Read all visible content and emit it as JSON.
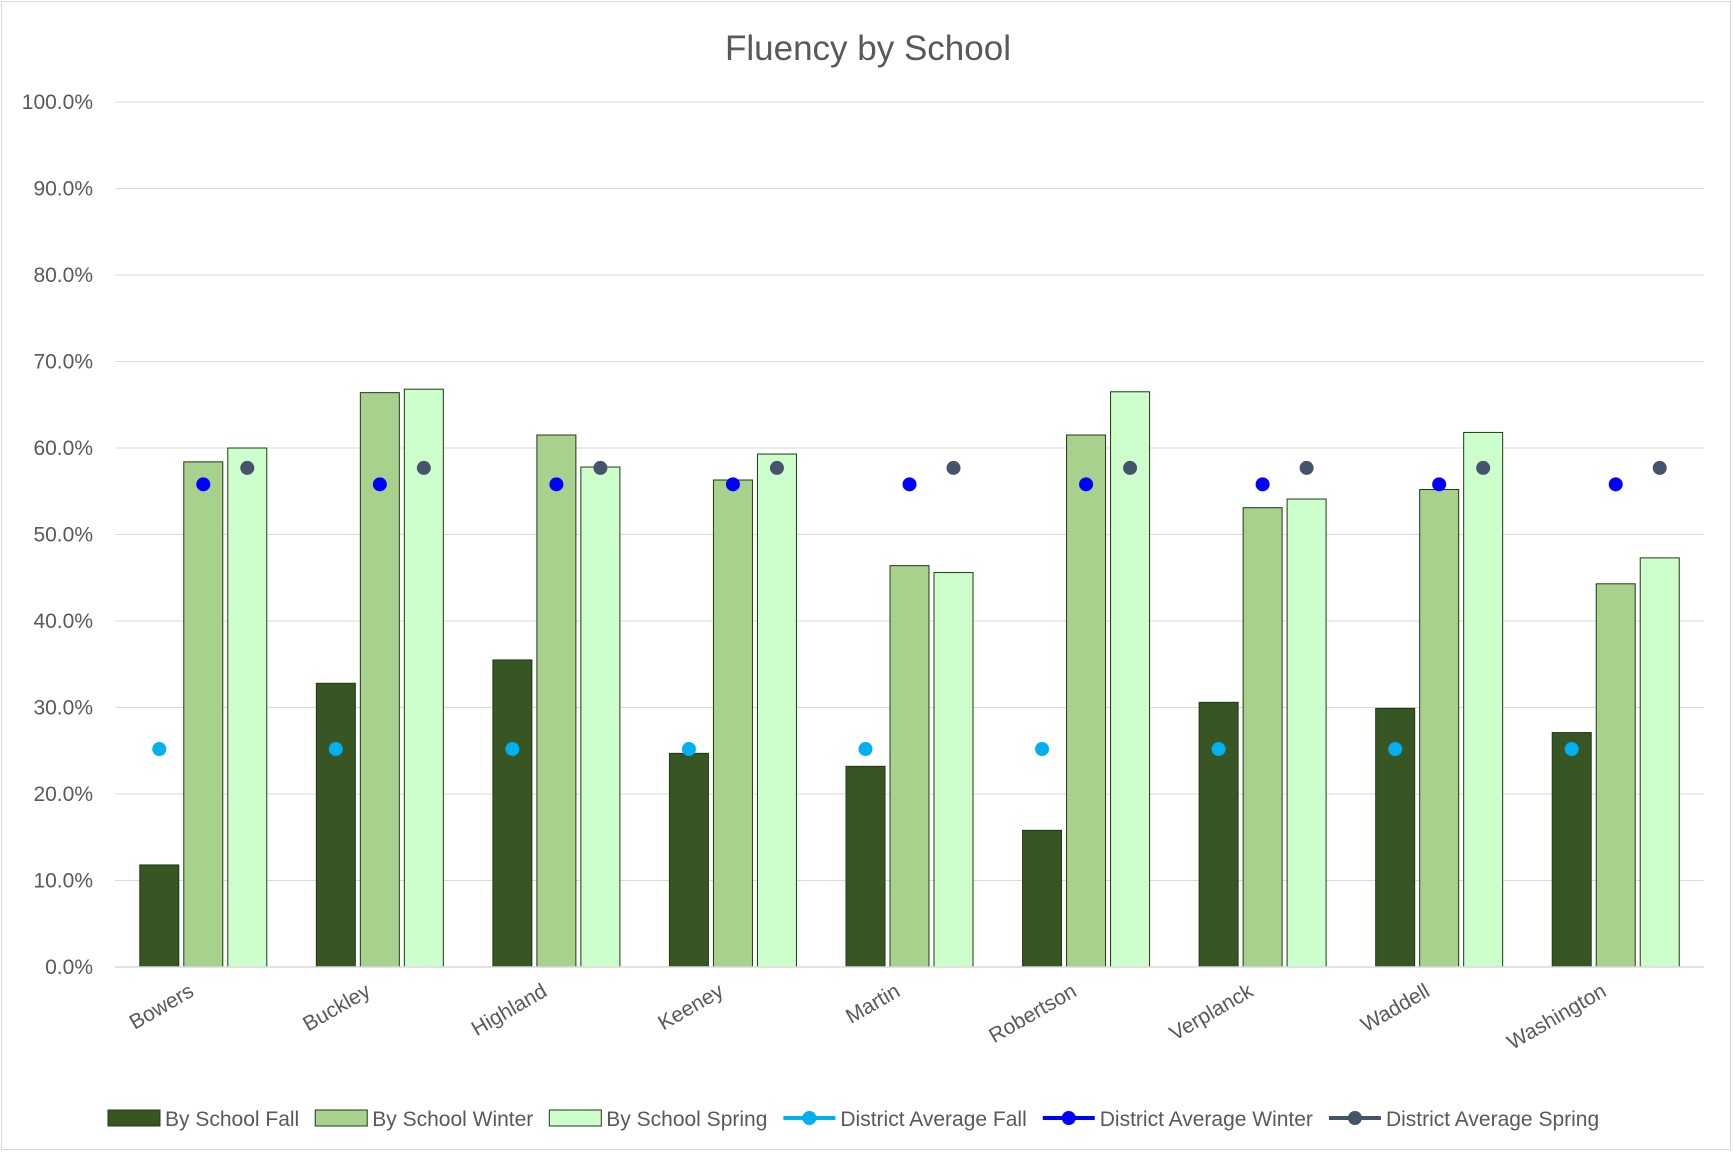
{
  "chart_data": {
    "type": "bar",
    "title": "Fluency by School",
    "xlabel": "",
    "ylabel": "",
    "ylim": [
      0,
      100
    ],
    "y_ticks": [
      "0.0%",
      "10.0%",
      "20.0%",
      "30.0%",
      "40.0%",
      "50.0%",
      "60.0%",
      "70.0%",
      "80.0%",
      "90.0%",
      "100.0%"
    ],
    "grid": true,
    "legend_position": "bottom",
    "categories": [
      "Bowers",
      "Buckley",
      "Highland",
      "Keeney",
      "Martin",
      "Robertson",
      "Verplanck",
      "Waddell",
      "Washington"
    ],
    "series": [
      {
        "name": "By School Fall",
        "kind": "bar",
        "color": "#375623",
        "values": [
          11.8,
          32.8,
          35.5,
          24.7,
          23.2,
          15.8,
          30.6,
          29.9,
          27.1
        ]
      },
      {
        "name": "By School Winter",
        "kind": "bar",
        "color": "#a9d18e",
        "values": [
          58.4,
          66.4,
          61.5,
          56.3,
          46.4,
          61.5,
          53.1,
          55.2,
          44.3
        ]
      },
      {
        "name": "By School Spring",
        "kind": "bar",
        "color": "#ccffcc",
        "values": [
          60.0,
          66.8,
          57.8,
          59.3,
          45.6,
          66.5,
          54.1,
          61.8,
          47.3
        ]
      },
      {
        "name": "District Average Fall",
        "kind": "marker",
        "color": "#00b0f0",
        "values": [
          25.2,
          25.2,
          25.2,
          25.2,
          25.2,
          25.2,
          25.2,
          25.2,
          25.2
        ]
      },
      {
        "name": "District Average Winter",
        "kind": "marker",
        "color": "#0000ff",
        "values": [
          55.8,
          55.8,
          55.8,
          55.8,
          55.8,
          55.8,
          55.8,
          55.8,
          55.8
        ]
      },
      {
        "name": "District Average Spring",
        "kind": "marker",
        "color": "#44546a",
        "values": [
          57.7,
          57.7,
          57.7,
          57.7,
          57.7,
          57.7,
          57.7,
          57.7,
          57.7
        ]
      }
    ]
  }
}
